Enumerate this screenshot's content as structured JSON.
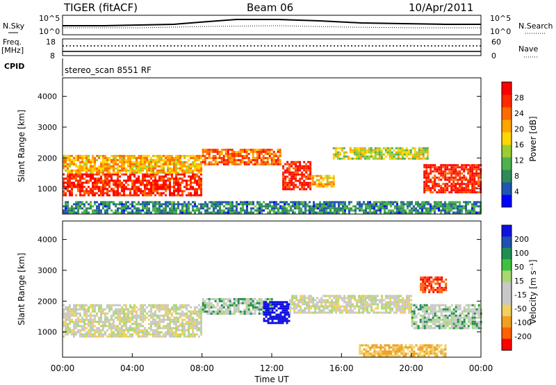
{
  "header": {
    "radar": "TIGER (fitACF)",
    "beam": "Beam 06",
    "date": "10/Apr/2011"
  },
  "noise_panel": {
    "left_label": "N.Sky",
    "right_label": "N.Search",
    "left_ticks": [
      "10^5",
      "10^0"
    ],
    "right_ticks": [
      "10^5",
      "10^0"
    ]
  },
  "freq_panel": {
    "left_label_1": "Freq.",
    "left_label_2": "[MHz]",
    "left_ticks": [
      "18",
      "8"
    ],
    "right_ticks": [
      "60",
      "0"
    ],
    "right_label": "Nave",
    "cpid_label": "CPID",
    "cpid_text": "stereo_scan 8551 RF"
  },
  "power_panel": {
    "ylabel": "Slant Range [km]",
    "yticks": [
      "1000",
      "2000",
      "3000",
      "4000"
    ],
    "cbar_label": "Power [dB]",
    "cbar_ticks": [
      "4",
      "8",
      "12",
      "16",
      "20",
      "24",
      "28"
    ],
    "cbar_colors": [
      "#0000ff",
      "#1f56b0",
      "#2e8b57",
      "#4fb04f",
      "#9acd32",
      "#ffd700",
      "#ffa500",
      "#ff6a00",
      "#ff2a00",
      "#ff0000"
    ]
  },
  "velocity_panel": {
    "ylabel": "Slant Range [km]",
    "yticks": [
      "1000",
      "2000",
      "3000",
      "4000"
    ],
    "cbar_label": "Velocity [m s⁻¹]",
    "cbar_ticks": [
      "200",
      "100",
      "50",
      "15",
      "-15",
      "-50",
      "-100",
      "-200"
    ],
    "cbar_colors": [
      "#1010e0",
      "#2050b0",
      "#1f8f4f",
      "#40c040",
      "#a8d870",
      "#c8c8c8",
      "#c8c8c8",
      "#f0d060",
      "#f0a020",
      "#ff6000",
      "#ff0000"
    ]
  },
  "time_axis": {
    "xlabel": "Time UT",
    "ticks": [
      "00:00",
      "04:00",
      "08:00",
      "12:00",
      "16:00",
      "20:00",
      "00:00"
    ]
  },
  "chart_data": [
    {
      "type": "heatmap",
      "name": "power",
      "xlabel": "Time UT",
      "ylabel": "Slant Range [km]",
      "xlim_hours": [
        0,
        24
      ],
      "ylim_km": [
        180,
        4600
      ],
      "colorbar_label": "Power [dB]",
      "colorbar_ticks": [
        4,
        8,
        12,
        16,
        20,
        24,
        28
      ],
      "regions": [
        {
          "t0": 0,
          "t1": 8,
          "r0": 820,
          "r1": 1500,
          "level": 28
        },
        {
          "t0": 0,
          "t1": 8,
          "r0": 1500,
          "r1": 2100,
          "level": 20
        },
        {
          "t0": 8,
          "t1": 12.5,
          "r0": 1800,
          "r1": 2300,
          "level": 24
        },
        {
          "t0": 12.6,
          "t1": 14.2,
          "r0": 1000,
          "r1": 1900,
          "level": 28
        },
        {
          "t0": 14.3,
          "t1": 15.5,
          "r0": 1050,
          "r1": 1450,
          "level": 20
        },
        {
          "t0": 15.5,
          "t1": 21,
          "r0": 2000,
          "r1": 2350,
          "level": 16
        },
        {
          "t0": 20.7,
          "t1": 24,
          "r0": 900,
          "r1": 1800,
          "level": 28
        },
        {
          "t0": 0,
          "t1": 24,
          "r0": 200,
          "r1": 600,
          "level": 8
        }
      ]
    },
    {
      "type": "heatmap",
      "name": "velocity",
      "xlabel": "Time UT",
      "ylabel": "Slant Range [km]",
      "xlim_hours": [
        0,
        24
      ],
      "ylim_km": [
        180,
        4600
      ],
      "colorbar_label": "Velocity [m s⁻¹]",
      "colorbar_ticks": [
        200,
        100,
        50,
        15,
        -15,
        -50,
        -100,
        -200
      ],
      "regions": [
        {
          "t0": 0,
          "t1": 8,
          "r0": 820,
          "r1": 1900,
          "level": 0
        },
        {
          "t0": 8,
          "t1": 12,
          "r0": 1600,
          "r1": 2100,
          "level": 15
        },
        {
          "t0": 11.5,
          "t1": 13,
          "r0": 1300,
          "r1": 2000,
          "level": 200
        },
        {
          "t0": 13,
          "t1": 20,
          "r0": 1600,
          "r1": 2200,
          "level": 0
        },
        {
          "t0": 17,
          "t1": 22,
          "r0": 200,
          "r1": 600,
          "level": -50
        },
        {
          "t0": 20,
          "t1": 24,
          "r0": 1100,
          "r1": 1900,
          "level": 15
        },
        {
          "t0": 20.5,
          "t1": 22,
          "r0": 2300,
          "r1": 2800,
          "level": -200
        }
      ]
    }
  ]
}
